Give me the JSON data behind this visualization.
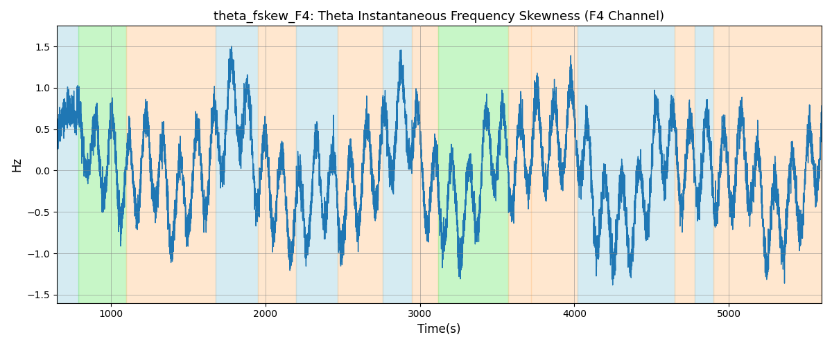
{
  "title": "theta_fskew_F4: Theta Instantaneous Frequency Skewness (F4 Channel)",
  "xlabel": "Time(s)",
  "ylabel": "Hz",
  "xlim": [
    650,
    5600
  ],
  "ylim": [
    -1.6,
    1.75
  ],
  "yticks": [
    -1.5,
    -1.0,
    -0.5,
    0.0,
    0.5,
    1.0,
    1.5
  ],
  "xticks": [
    1000,
    2000,
    3000,
    4000,
    5000
  ],
  "line_color": "#1f77b4",
  "line_width": 1.0,
  "bg_bands": [
    {
      "xmin": 650,
      "xmax": 790,
      "color": "#add8e6",
      "alpha": 0.5
    },
    {
      "xmin": 790,
      "xmax": 1100,
      "color": "#90ee90",
      "alpha": 0.5
    },
    {
      "xmin": 1100,
      "xmax": 1680,
      "color": "#ffd0a0",
      "alpha": 0.5
    },
    {
      "xmin": 1680,
      "xmax": 1950,
      "color": "#add8e6",
      "alpha": 0.5
    },
    {
      "xmin": 1950,
      "xmax": 2200,
      "color": "#ffd0a0",
      "alpha": 0.5
    },
    {
      "xmin": 2200,
      "xmax": 2470,
      "color": "#add8e6",
      "alpha": 0.5
    },
    {
      "xmin": 2470,
      "xmax": 2760,
      "color": "#ffd0a0",
      "alpha": 0.5
    },
    {
      "xmin": 2760,
      "xmax": 2950,
      "color": "#add8e6",
      "alpha": 0.5
    },
    {
      "xmin": 2950,
      "xmax": 3120,
      "color": "#ffd0a0",
      "alpha": 0.5
    },
    {
      "xmin": 3120,
      "xmax": 3570,
      "color": "#90ee90",
      "alpha": 0.5
    },
    {
      "xmin": 3570,
      "xmax": 3720,
      "color": "#ffd0a0",
      "alpha": 0.5
    },
    {
      "xmin": 3720,
      "xmax": 4020,
      "color": "#ffd0a0",
      "alpha": 0.5
    },
    {
      "xmin": 4020,
      "xmax": 4650,
      "color": "#add8e6",
      "alpha": 0.5
    },
    {
      "xmin": 4650,
      "xmax": 4780,
      "color": "#ffd0a0",
      "alpha": 0.5
    },
    {
      "xmin": 4780,
      "xmax": 4900,
      "color": "#add8e6",
      "alpha": 0.5
    },
    {
      "xmin": 4900,
      "xmax": 5600,
      "color": "#ffd0a0",
      "alpha": 0.5
    }
  ],
  "seed": 42,
  "n_points": 8000,
  "title_fontsize": 13
}
